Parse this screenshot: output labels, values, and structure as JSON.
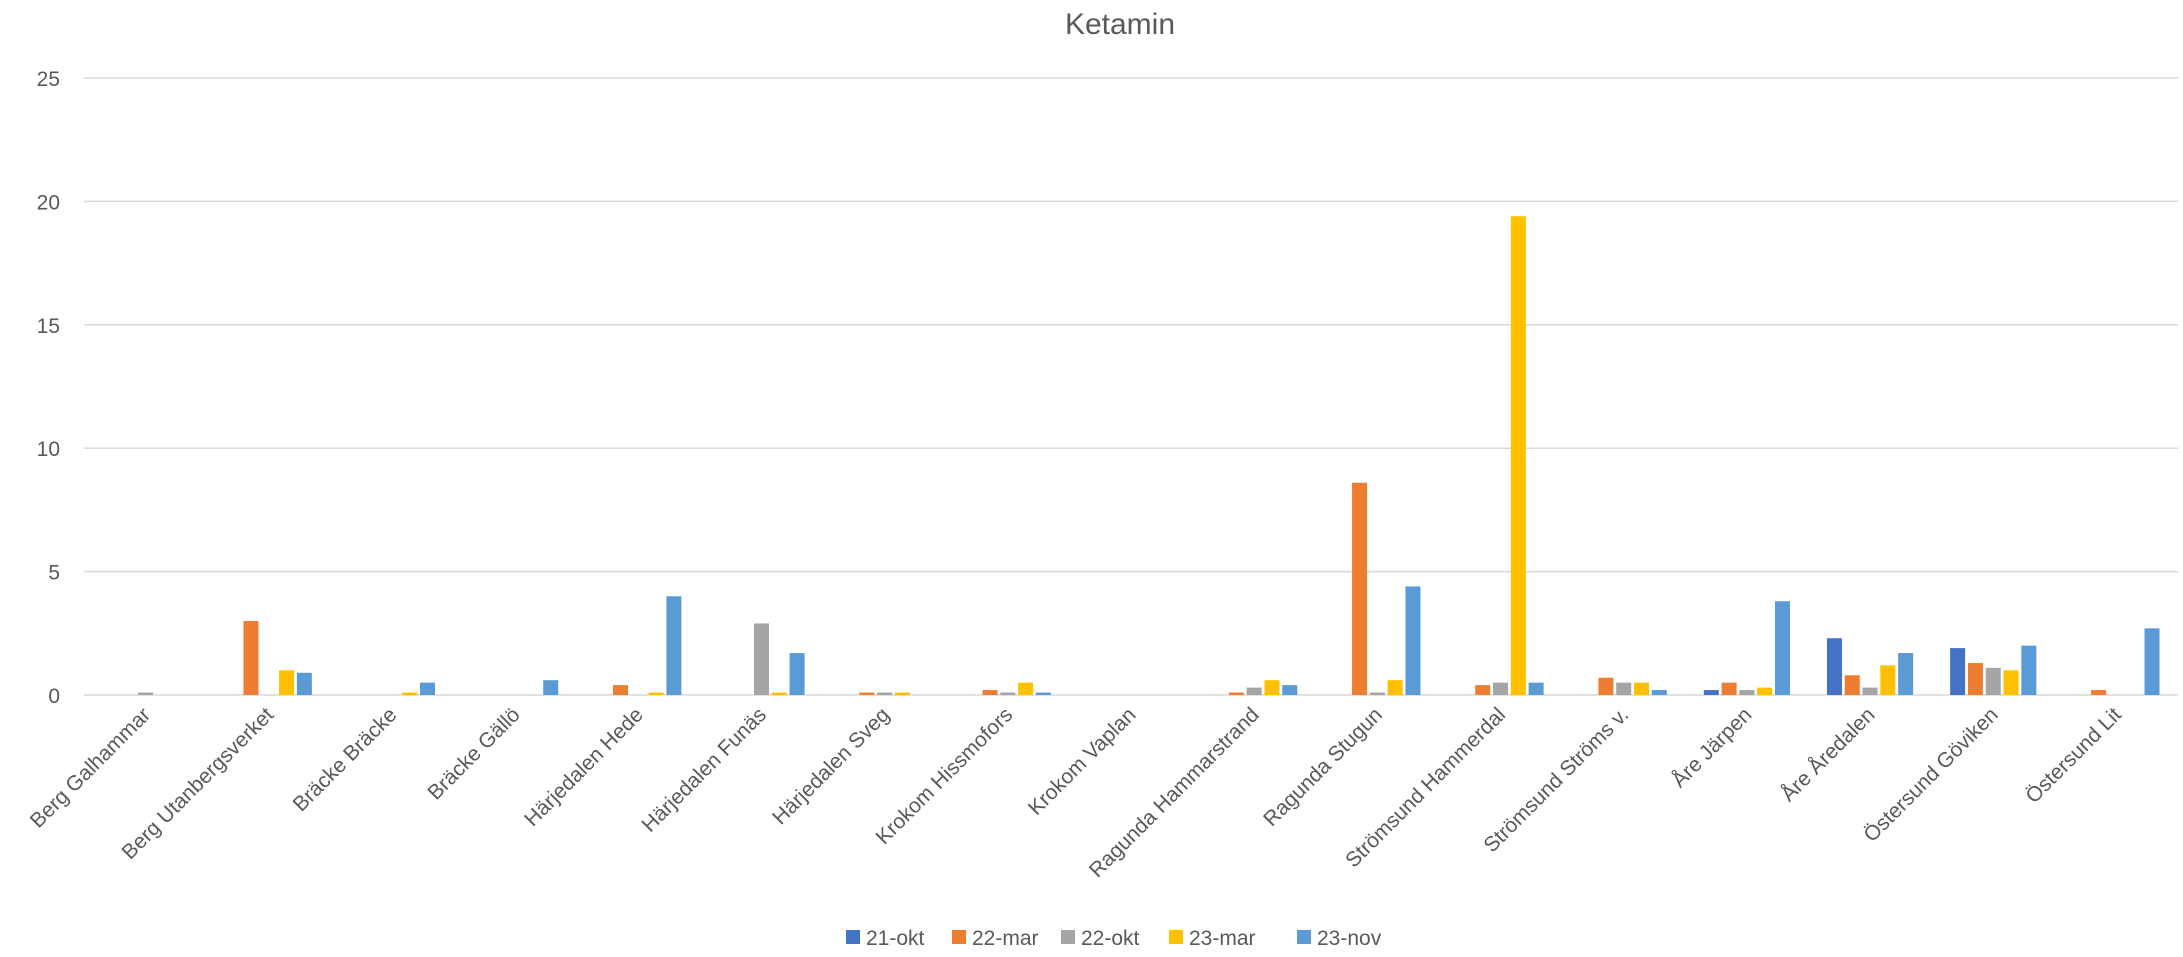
{
  "chart_data": {
    "type": "bar",
    "title": "Ketamin",
    "xlabel": "",
    "ylabel": "",
    "ylim": [
      0,
      25
    ],
    "yticks": [
      "0",
      "5",
      "10",
      "15",
      "20",
      "25"
    ],
    "grid": true,
    "legend_position": "bottom",
    "categories": [
      "Berg Galhammar",
      "Berg Utanbergsverket",
      "Bräcke Bräcke",
      "Bräcke Gällö",
      "Härjedalen Hede",
      "Härjedalen Funäs",
      "Härjedalen Sveg",
      "Krokom Hissmofors",
      "Krokom Vaplan",
      "Ragunda Hammarstrand",
      "Ragunda Stugun",
      "Strömsund Hammerdal",
      "Strömsund Ströms v.",
      "Åre Järpen",
      "Åre Åredalen",
      "Östersund Göviken",
      "Östersund Lit"
    ],
    "series": [
      {
        "name": "21-okt",
        "color": "#4472C4",
        "values": [
          null,
          null,
          null,
          null,
          null,
          null,
          null,
          null,
          null,
          null,
          null,
          null,
          null,
          0.2,
          2.3,
          1.9,
          null
        ]
      },
      {
        "name": "22-mar",
        "color": "#ED7D31",
        "values": [
          null,
          3.0,
          null,
          null,
          0.4,
          null,
          0.1,
          0.2,
          null,
          0.1,
          8.6,
          0.4,
          0.7,
          0.5,
          0.8,
          1.3,
          0.2
        ]
      },
      {
        "name": "22-okt",
        "color": "#A5A5A5",
        "values": [
          0.1,
          null,
          null,
          null,
          null,
          2.9,
          0.1,
          0.1,
          null,
          0.3,
          0.1,
          0.5,
          0.5,
          0.2,
          0.3,
          1.1,
          null
        ]
      },
      {
        "name": "23-mar",
        "color": "#FFC000",
        "values": [
          null,
          1.0,
          0.1,
          null,
          0.1,
          0.1,
          0.1,
          0.5,
          null,
          0.6,
          0.6,
          19.4,
          0.5,
          0.3,
          1.2,
          1.0,
          null
        ]
      },
      {
        "name": "23-nov",
        "color": "#5B9BD5",
        "values": [
          null,
          0.9,
          0.5,
          0.6,
          4.0,
          1.7,
          null,
          0.1,
          null,
          0.4,
          4.4,
          0.5,
          0.2,
          3.8,
          1.7,
          2.0,
          2.7
        ]
      }
    ],
    "colors": {
      "gridline": "#D9D9D9",
      "axis_text": "#595959",
      "title": "#595959"
    }
  }
}
